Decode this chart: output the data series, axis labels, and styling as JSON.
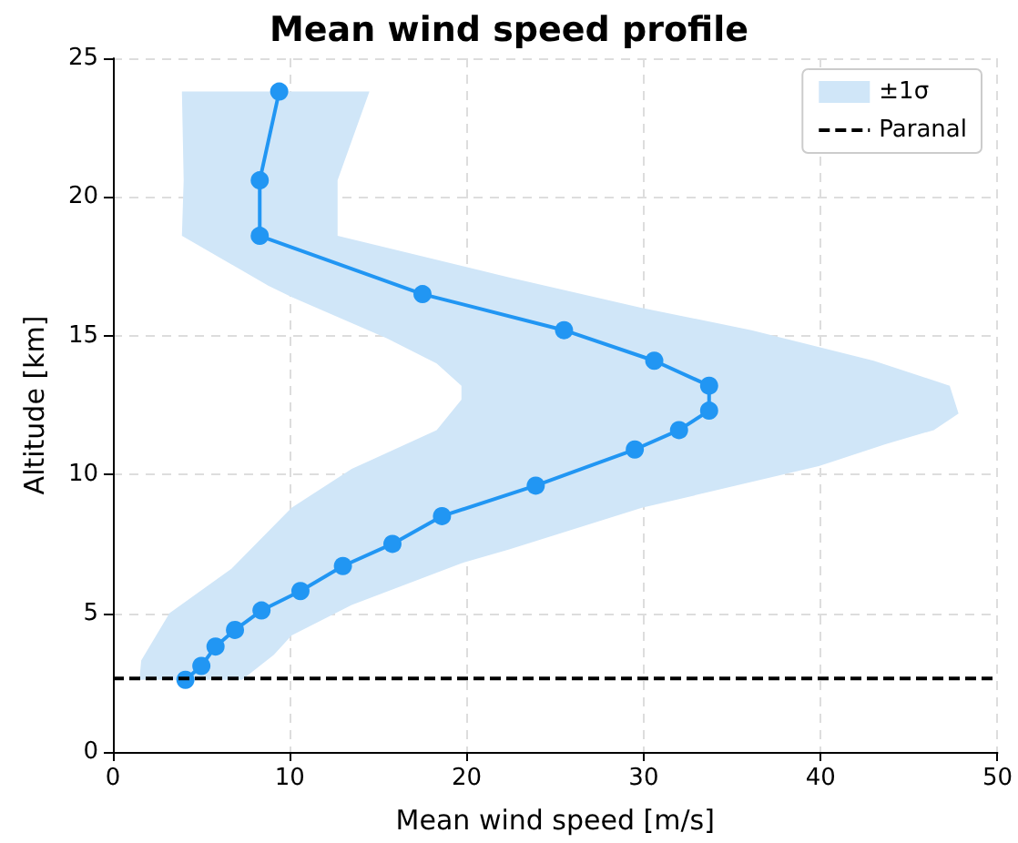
{
  "chart_data": {
    "type": "line",
    "title": "Mean wind speed profile",
    "xlabel": "Mean wind speed [m/s]",
    "ylabel": "Altitude [km]",
    "xlim": [
      0,
      50
    ],
    "xticks": [
      0,
      10,
      20,
      30,
      40,
      50
    ],
    "ylim": [
      0,
      25
    ],
    "yticks": [
      0,
      5,
      10,
      15,
      20,
      25
    ],
    "grid": true,
    "legend": "top right",
    "line_style": "solid",
    "series": [
      {
        "name": "±1σ",
        "type": "area",
        "color": "#d0e6f8",
        "x": [
          1.5,
          1.6,
          3.2,
          6.7,
          10.1,
          13.5,
          18.3,
          19.7,
          19.7,
          18.3,
          15.5,
          10.1,
          8.8,
          3.9,
          4.0,
          3.9,
          14.5,
          12.7,
          12.7,
          22.4,
          29.9,
          36.1,
          43.0,
          47.3,
          47.8,
          46.4,
          43.7,
          39.9,
          29.9,
          22.4,
          19.7,
          13.5,
          10.1,
          9.1,
          7.3
        ],
        "values": [
          2.6,
          3.3,
          5.0,
          6.6,
          8.8,
          10.2,
          11.6,
          12.7,
          13.2,
          14.0,
          14.9,
          16.4,
          16.8,
          18.6,
          20.6,
          23.8,
          23.8,
          20.6,
          18.6,
          17.1,
          16.0,
          15.2,
          14.1,
          13.2,
          12.2,
          11.6,
          11.1,
          10.3,
          8.8,
          7.3,
          6.8,
          5.3,
          4.2,
          3.5,
          2.6
        ]
      },
      {
        "marker": "circle",
        "color": "#2196f3",
        "x": [
          9.4,
          8.3,
          8.3,
          17.5,
          25.5,
          30.6,
          33.7,
          33.7,
          32.0,
          29.5,
          23.9,
          18.6,
          15.8,
          13.0,
          10.6,
          8.4,
          6.9,
          5.8,
          5.0,
          4.1
        ],
        "values": [
          23.8,
          20.6,
          18.6,
          16.5,
          15.2,
          14.1,
          13.2,
          12.3,
          11.6,
          10.9,
          9.6,
          8.5,
          7.5,
          6.7,
          5.8,
          5.1,
          4.4,
          3.8,
          3.1,
          2.6
        ]
      }
    ],
    "ref_lines": [
      {
        "axis": "y",
        "value": 2.65,
        "label": "Paranal",
        "color": "#000000",
        "line_style": "dashed"
      }
    ]
  }
}
